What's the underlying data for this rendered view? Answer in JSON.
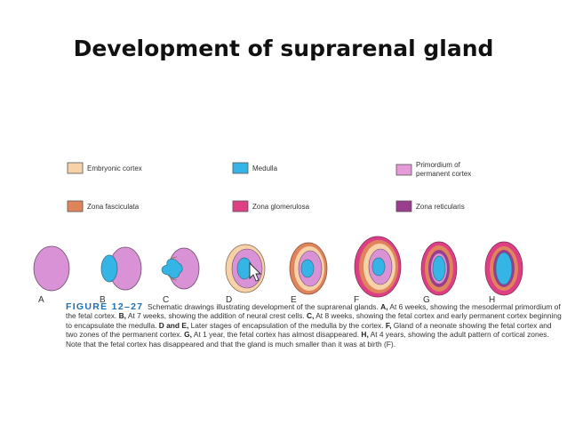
{
  "slide": {
    "title": "Development of suprarenal gland"
  },
  "colors": {
    "embryonic_cortex": "#f7d2a8",
    "medulla": "#35b4e6",
    "primordium": "#e79ad9",
    "zona_fasciculata": "#e0845c",
    "zona_glomerulosa": "#dd3e84",
    "zona_reticularis": "#9a3d8d",
    "fetal_cortex": "#d992d6",
    "caption_heading": "#1f6fb5"
  },
  "legend": {
    "items": [
      {
        "label": "Embryonic cortex",
        "color_key": "embryonic_cortex"
      },
      {
        "label": "Medulla",
        "color_key": "medulla"
      },
      {
        "label_line1": "Primordium of",
        "label_line2": "permanent cortex",
        "color_key": "primordium"
      },
      {
        "label": "Zona fasciculata",
        "color_key": "zona_fasciculata"
      },
      {
        "label": "Zona glomerulosa",
        "color_key": "zona_glomerulosa"
      },
      {
        "label": "Zona reticularis",
        "color_key": "zona_reticularis"
      }
    ]
  },
  "stages": [
    "A",
    "B",
    "C",
    "D",
    "E",
    "F",
    "G",
    "H"
  ],
  "caption": {
    "figure_label": "FIGURE 12–27",
    "intro": "Schematic drawings illustrating development of the suprarenal glands.",
    "parts": [
      {
        "letter": "A,",
        "text": "At 6 weeks, showing the mesodermal primordium of the fetal cortex."
      },
      {
        "letter": "B,",
        "text": "At 7 weeks, showing the addition of neural crest cells."
      },
      {
        "letter": "C,",
        "text": "At 8 weeks, showing the fetal cortex and early permanent cortex beginning to encapsulate the medulla."
      },
      {
        "letter": "D and E,",
        "text": "Later stages of encapsulation of the medulla by the cortex."
      },
      {
        "letter": "F,",
        "text": "Gland of a neonate showing the fetal cortex and two zones of the permanent cortex."
      },
      {
        "letter": "G,",
        "text": "At 1 year, the fetal cortex has almost disappeared."
      },
      {
        "letter": "H,",
        "text": "At 4 years, showing the adult pattern of cortical zones. Note that the fetal cortex has disappeared and that the gland is much smaller than it was at birth (F)."
      }
    ]
  }
}
